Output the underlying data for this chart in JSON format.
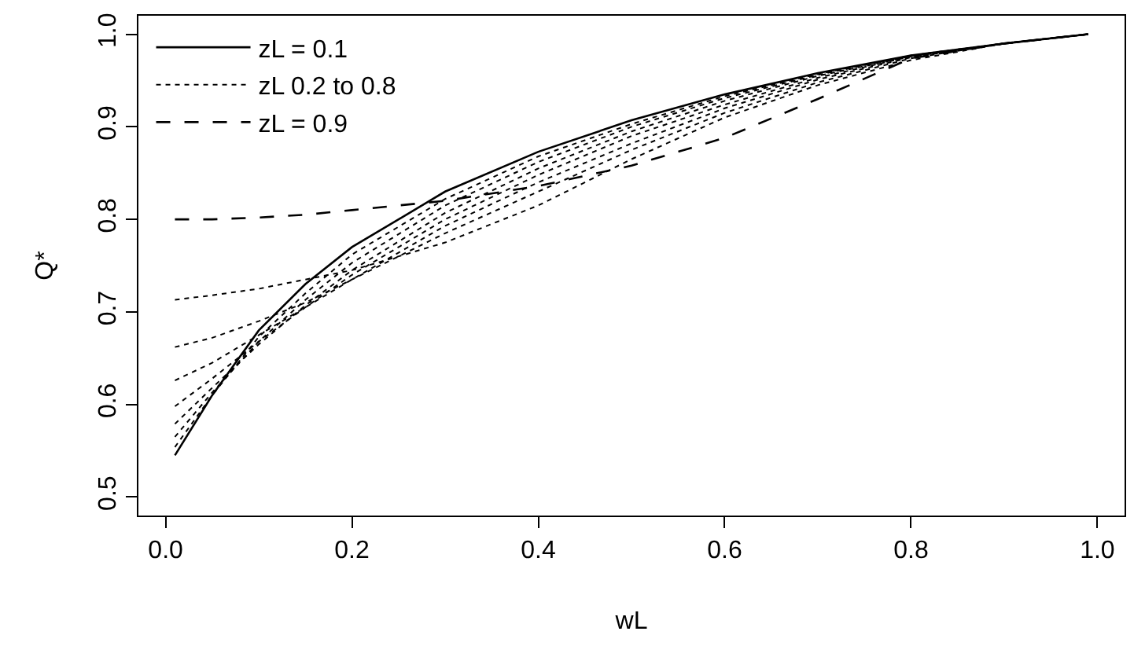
{
  "chart_data": {
    "type": "line",
    "xlabel": "wL",
    "ylabel": "Q*",
    "x": [
      0.01,
      0.05,
      0.1,
      0.15,
      0.2,
      0.3,
      0.4,
      0.5,
      0.6,
      0.7,
      0.8,
      0.9,
      0.99
    ],
    "xlim": [
      -0.0292,
      1.0292
    ],
    "xticks": [
      {
        "value": 0,
        "label": "0.0"
      },
      0.2,
      0.4,
      0.6,
      0.8,
      {
        "value": 1,
        "label": "1.0"
      }
    ],
    "ylim": [
      0.48,
      1.02
    ],
    "yticks": [
      0.5,
      0.6,
      0.7,
      0.8,
      0.9,
      {
        "value": 1,
        "label": "1.0"
      }
    ],
    "grid": false,
    "legend": "top left",
    "marker": "none",
    "series": [
      {
        "name": "zL = 0.1",
        "color": "#000000",
        "line_style": "solid",
        "values": [
          0.545,
          0.61,
          0.68,
          0.73,
          0.77,
          0.83,
          0.873,
          0.907,
          0.935,
          0.958,
          0.977,
          0.99,
          1.0
        ]
      },
      {
        "name": "zL 0.2 to 0.8",
        "color": "#000000",
        "line_style": "dotted",
        "values": [
          0.554,
          0.61,
          0.673,
          0.72,
          0.762,
          0.822,
          0.868,
          0.903,
          0.933,
          0.957,
          0.977,
          0.99,
          1.0
        ]
      },
      {
        "color": "#000000",
        "line_style": "dotted",
        "values": [
          0.565,
          0.613,
          0.668,
          0.713,
          0.753,
          0.815,
          0.862,
          0.9,
          0.931,
          0.956,
          0.977,
          0.99,
          1.0
        ]
      },
      {
        "color": "#000000",
        "line_style": "dotted",
        "values": [
          0.579,
          0.618,
          0.665,
          0.707,
          0.745,
          0.807,
          0.855,
          0.895,
          0.928,
          0.955,
          0.976,
          0.99,
          1.0
        ]
      },
      {
        "color": "#000000",
        "line_style": "dotted",
        "values": [
          0.598,
          0.628,
          0.668,
          0.705,
          0.74,
          0.8,
          0.848,
          0.89,
          0.924,
          0.953,
          0.976,
          0.99,
          1.0
        ]
      },
      {
        "color": "#000000",
        "line_style": "dotted",
        "values": [
          0.626,
          0.645,
          0.675,
          0.705,
          0.735,
          0.793,
          0.84,
          0.882,
          0.92,
          0.951,
          0.975,
          0.99,
          1.0
        ]
      },
      {
        "color": "#000000",
        "line_style": "dotted",
        "values": [
          0.662,
          0.672,
          0.69,
          0.71,
          0.735,
          0.785,
          0.83,
          0.875,
          0.915,
          0.948,
          0.974,
          0.99,
          1.0
        ]
      },
      {
        "color": "#000000",
        "line_style": "dotted",
        "values": [
          0.713,
          0.718,
          0.725,
          0.735,
          0.745,
          0.775,
          0.815,
          0.865,
          0.91,
          0.945,
          0.972,
          0.99,
          1.0
        ]
      },
      {
        "name": "zL = 0.9",
        "color": "#000000",
        "line_style": "dashed",
        "values": [
          0.8,
          0.8,
          0.802,
          0.805,
          0.81,
          0.82,
          0.836,
          0.858,
          0.888,
          0.93,
          0.974,
          0.99,
          1.0
        ]
      }
    ]
  }
}
